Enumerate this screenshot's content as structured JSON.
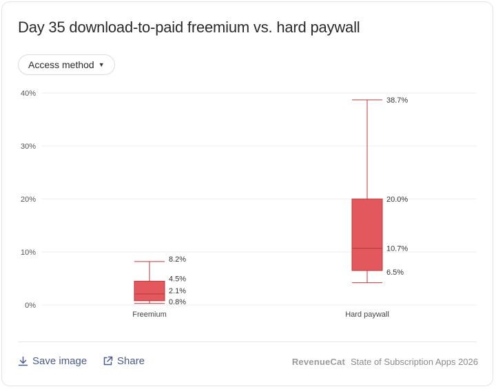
{
  "title": "Day 35 download-to-paid freemium vs. hard paywall",
  "filter": {
    "label": "Access method"
  },
  "chart_data": {
    "type": "box",
    "ylim": [
      0,
      40
    ],
    "y_ticks": [
      0,
      10,
      20,
      30,
      40
    ],
    "y_tick_labels": [
      "0%",
      "10%",
      "20%",
      "30%",
      "40%"
    ],
    "grid": true,
    "color": "#e2585c",
    "categories": [
      "Freemium",
      "Hard paywall"
    ],
    "boxes": [
      {
        "category": "Freemium",
        "min": 0.3,
        "q1": 0.8,
        "median": 2.1,
        "q3": 4.5,
        "max": 8.2,
        "labels": {
          "max": "8.2%",
          "q3": "4.5%",
          "median": "2.1%",
          "q1": "0.8%"
        }
      },
      {
        "category": "Hard paywall",
        "min": 4.2,
        "q1": 6.5,
        "median": 10.7,
        "q3": 20.0,
        "max": 38.7,
        "labels": {
          "max": "38.7%",
          "q3": "20.0%",
          "median": "10.7%",
          "q1": "6.5%"
        }
      }
    ]
  },
  "footer": {
    "save_label": "Save image",
    "share_label": "Share",
    "brand_logo": "RevenueCat",
    "brand_text": "State of Subscription Apps 2026"
  }
}
